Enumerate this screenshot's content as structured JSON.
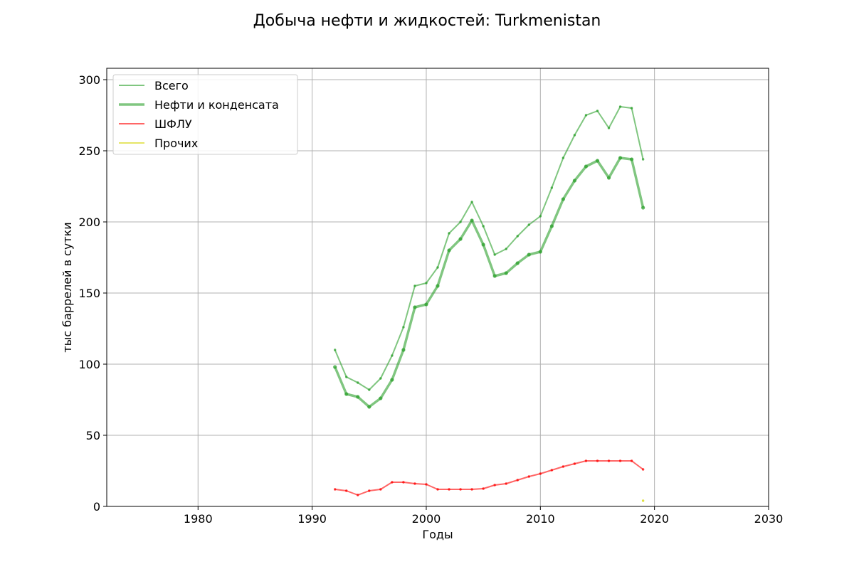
{
  "chart_data": {
    "type": "line",
    "title": "Добыча нефти и жидкостей: Turkmenistan",
    "xlabel": "Годы",
    "ylabel": "тыс баррелей в сутки",
    "xlim": [
      1972,
      2030
    ],
    "ylim": [
      0,
      308
    ],
    "xticks": [
      1980,
      1990,
      2000,
      2010,
      2020,
      2030
    ],
    "yticks": [
      0,
      50,
      100,
      150,
      200,
      250,
      300
    ],
    "grid": true,
    "legend_position": "top-left",
    "series": [
      {
        "name": "Всего",
        "color": "#2ca02c",
        "style": "thin",
        "x": [
          1992,
          1993,
          1994,
          1995,
          1996,
          1997,
          1998,
          1999,
          2000,
          2001,
          2002,
          2003,
          2004,
          2005,
          2006,
          2007,
          2008,
          2009,
          2010,
          2011,
          2012,
          2013,
          2014,
          2015,
          2016,
          2017,
          2018,
          2019
        ],
        "y": [
          110,
          91,
          87,
          82,
          90,
          106,
          126,
          155,
          157,
          168,
          192,
          200,
          214,
          197,
          177,
          181,
          190,
          198,
          204,
          224,
          245,
          261,
          275,
          278,
          266,
          281,
          280,
          244
        ]
      },
      {
        "name": "Нефти и конденсата",
        "color": "#2ca02c",
        "style": "thick",
        "x": [
          1992,
          1993,
          1994,
          1995,
          1996,
          1997,
          1998,
          1999,
          2000,
          2001,
          2002,
          2003,
          2004,
          2005,
          2006,
          2007,
          2008,
          2009,
          2010,
          2011,
          2012,
          2013,
          2014,
          2015,
          2016,
          2017,
          2018,
          2019
        ],
        "y": [
          98,
          79,
          77,
          70,
          76,
          89,
          110,
          140,
          142,
          155,
          180,
          188,
          201,
          184,
          162,
          164,
          171,
          177,
          179,
          197,
          216,
          229,
          239,
          243,
          231,
          245,
          244,
          210
        ]
      },
      {
        "name": "ШФЛУ",
        "color": "#ff0000",
        "style": "thin",
        "x": [
          1992,
          1993,
          1994,
          1995,
          1996,
          1997,
          1998,
          1999,
          2000,
          2001,
          2002,
          2003,
          2004,
          2005,
          2006,
          2007,
          2008,
          2009,
          2010,
          2011,
          2012,
          2013,
          2014,
          2015,
          2016,
          2017,
          2018,
          2019
        ],
        "y": [
          12,
          11,
          8,
          11,
          12,
          17,
          17,
          16,
          15.5,
          12,
          12,
          12,
          12,
          12.5,
          15,
          16,
          18.5,
          21,
          23,
          25.5,
          28,
          30,
          32,
          32,
          32,
          32,
          32,
          26
        ]
      },
      {
        "name": "Прочих",
        "color": "#d4d400",
        "style": "thin",
        "x": [
          2019
        ],
        "y": [
          4
        ]
      }
    ]
  }
}
